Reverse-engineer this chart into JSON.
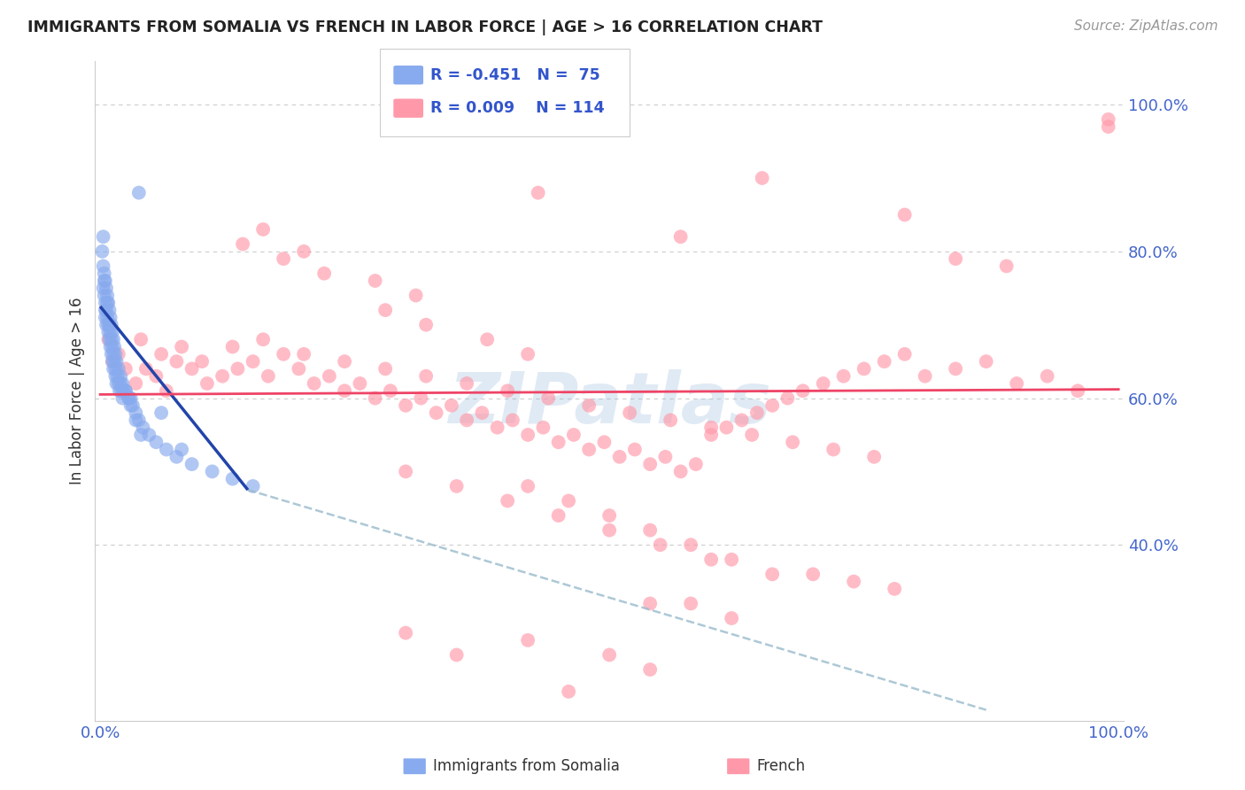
{
  "title": "IMMIGRANTS FROM SOMALIA VS FRENCH IN LABOR FORCE | AGE > 16 CORRELATION CHART",
  "source": "Source: ZipAtlas.com",
  "ylabel": "In Labor Force | Age > 16",
  "ylim": [
    0.16,
    1.06
  ],
  "xlim": [
    -0.005,
    1.005
  ],
  "yticks": [
    0.4,
    0.6,
    0.8,
    1.0
  ],
  "ytick_labels": [
    "40.0%",
    "60.0%",
    "80.0%",
    "100.0%"
  ],
  "title_color": "#222222",
  "source_color": "#999999",
  "tick_color": "#4466cc",
  "grid_color": "#cccccc",
  "blue_color": "#88aaee",
  "pink_color": "#ff99aa",
  "trend_blue_color": "#2244aa",
  "trend_pink_color": "#ee4466",
  "trend_dashed_color": "#99bbcc",
  "legend_R_blue": "R = -0.451",
  "legend_N_blue": "N =  75",
  "legend_R_pink": "R = 0.009",
  "legend_N_pink": "N = 114",
  "watermark": "ZIPatlas",
  "somalia_trend_x": [
    0.0,
    0.145
  ],
  "somalia_trend_y": [
    0.725,
    0.475
  ],
  "french_trend_x": [
    0.0,
    1.0
  ],
  "french_trend_y": [
    0.605,
    0.612
  ],
  "dashed_trend_x": [
    0.145,
    0.87
  ],
  "dashed_trend_y": [
    0.475,
    0.175
  ],
  "somalia_x": [
    0.002,
    0.003,
    0.003,
    0.004,
    0.004,
    0.005,
    0.005,
    0.005,
    0.006,
    0.006,
    0.007,
    0.007,
    0.008,
    0.008,
    0.009,
    0.009,
    0.01,
    0.01,
    0.011,
    0.011,
    0.012,
    0.012,
    0.013,
    0.013,
    0.014,
    0.015,
    0.015,
    0.016,
    0.017,
    0.018,
    0.019,
    0.02,
    0.021,
    0.022,
    0.023,
    0.025,
    0.028,
    0.03,
    0.032,
    0.035,
    0.038,
    0.042,
    0.048,
    0.055,
    0.065,
    0.075,
    0.09,
    0.11,
    0.13,
    0.15,
    0.003,
    0.004,
    0.005,
    0.006,
    0.007,
    0.008,
    0.009,
    0.01,
    0.011,
    0.012,
    0.013,
    0.014,
    0.015,
    0.016,
    0.018,
    0.02,
    0.022,
    0.025,
    0.028,
    0.03,
    0.035,
    0.04,
    0.06,
    0.08,
    0.038
  ],
  "somalia_y": [
    0.8,
    0.82,
    0.78,
    0.76,
    0.74,
    0.73,
    0.71,
    0.72,
    0.7,
    0.72,
    0.73,
    0.71,
    0.7,
    0.69,
    0.68,
    0.7,
    0.69,
    0.67,
    0.66,
    0.68,
    0.67,
    0.65,
    0.66,
    0.64,
    0.65,
    0.64,
    0.63,
    0.62,
    0.63,
    0.62,
    0.61,
    0.62,
    0.61,
    0.6,
    0.61,
    0.61,
    0.6,
    0.6,
    0.59,
    0.58,
    0.57,
    0.56,
    0.55,
    0.54,
    0.53,
    0.52,
    0.51,
    0.5,
    0.49,
    0.48,
    0.75,
    0.77,
    0.76,
    0.75,
    0.74,
    0.73,
    0.72,
    0.71,
    0.7,
    0.69,
    0.68,
    0.67,
    0.66,
    0.65,
    0.64,
    0.63,
    0.62,
    0.61,
    0.6,
    0.59,
    0.57,
    0.55,
    0.58,
    0.53,
    0.88
  ],
  "french_x": [
    0.008,
    0.012,
    0.018,
    0.025,
    0.035,
    0.045,
    0.055,
    0.065,
    0.075,
    0.09,
    0.105,
    0.12,
    0.135,
    0.15,
    0.165,
    0.18,
    0.195,
    0.21,
    0.225,
    0.24,
    0.255,
    0.27,
    0.285,
    0.3,
    0.315,
    0.33,
    0.345,
    0.36,
    0.375,
    0.39,
    0.405,
    0.42,
    0.435,
    0.45,
    0.465,
    0.48,
    0.495,
    0.51,
    0.525,
    0.54,
    0.555,
    0.57,
    0.585,
    0.6,
    0.615,
    0.63,
    0.645,
    0.66,
    0.675,
    0.69,
    0.71,
    0.73,
    0.75,
    0.77,
    0.79,
    0.81,
    0.84,
    0.87,
    0.9,
    0.93,
    0.96,
    0.99,
    0.04,
    0.06,
    0.08,
    0.1,
    0.13,
    0.16,
    0.2,
    0.24,
    0.28,
    0.32,
    0.36,
    0.4,
    0.44,
    0.48,
    0.52,
    0.56,
    0.6,
    0.64,
    0.68,
    0.72,
    0.76,
    0.3,
    0.35,
    0.4,
    0.45,
    0.5,
    0.55,
    0.6,
    0.28,
    0.32,
    0.38,
    0.42,
    0.27,
    0.31,
    0.18,
    0.22,
    0.14,
    0.16,
    0.2,
    0.42,
    0.46,
    0.5,
    0.54,
    0.58,
    0.62,
    0.66,
    0.7,
    0.74,
    0.78,
    0.54,
    0.58,
    0.62
  ],
  "french_y": [
    0.68,
    0.65,
    0.66,
    0.64,
    0.62,
    0.64,
    0.63,
    0.61,
    0.65,
    0.64,
    0.62,
    0.63,
    0.64,
    0.65,
    0.63,
    0.66,
    0.64,
    0.62,
    0.63,
    0.61,
    0.62,
    0.6,
    0.61,
    0.59,
    0.6,
    0.58,
    0.59,
    0.57,
    0.58,
    0.56,
    0.57,
    0.55,
    0.56,
    0.54,
    0.55,
    0.53,
    0.54,
    0.52,
    0.53,
    0.51,
    0.52,
    0.5,
    0.51,
    0.55,
    0.56,
    0.57,
    0.58,
    0.59,
    0.6,
    0.61,
    0.62,
    0.63,
    0.64,
    0.65,
    0.66,
    0.63,
    0.64,
    0.65,
    0.62,
    0.63,
    0.61,
    0.98,
    0.68,
    0.66,
    0.67,
    0.65,
    0.67,
    0.68,
    0.66,
    0.65,
    0.64,
    0.63,
    0.62,
    0.61,
    0.6,
    0.59,
    0.58,
    0.57,
    0.56,
    0.55,
    0.54,
    0.53,
    0.52,
    0.5,
    0.48,
    0.46,
    0.44,
    0.42,
    0.4,
    0.38,
    0.72,
    0.7,
    0.68,
    0.66,
    0.76,
    0.74,
    0.79,
    0.77,
    0.81,
    0.83,
    0.8,
    0.48,
    0.46,
    0.44,
    0.42,
    0.4,
    0.38,
    0.36,
    0.36,
    0.35,
    0.34,
    0.32,
    0.32,
    0.3
  ],
  "french_high_x": [
    0.43,
    0.57,
    0.65,
    0.79,
    0.84,
    0.89,
    0.99
  ],
  "french_high_y": [
    0.88,
    0.82,
    0.9,
    0.85,
    0.79,
    0.78,
    0.97
  ],
  "french_low_x": [
    0.3,
    0.35,
    0.42,
    0.46,
    0.5,
    0.54
  ],
  "french_low_y": [
    0.28,
    0.25,
    0.27,
    0.2,
    0.25,
    0.23
  ]
}
